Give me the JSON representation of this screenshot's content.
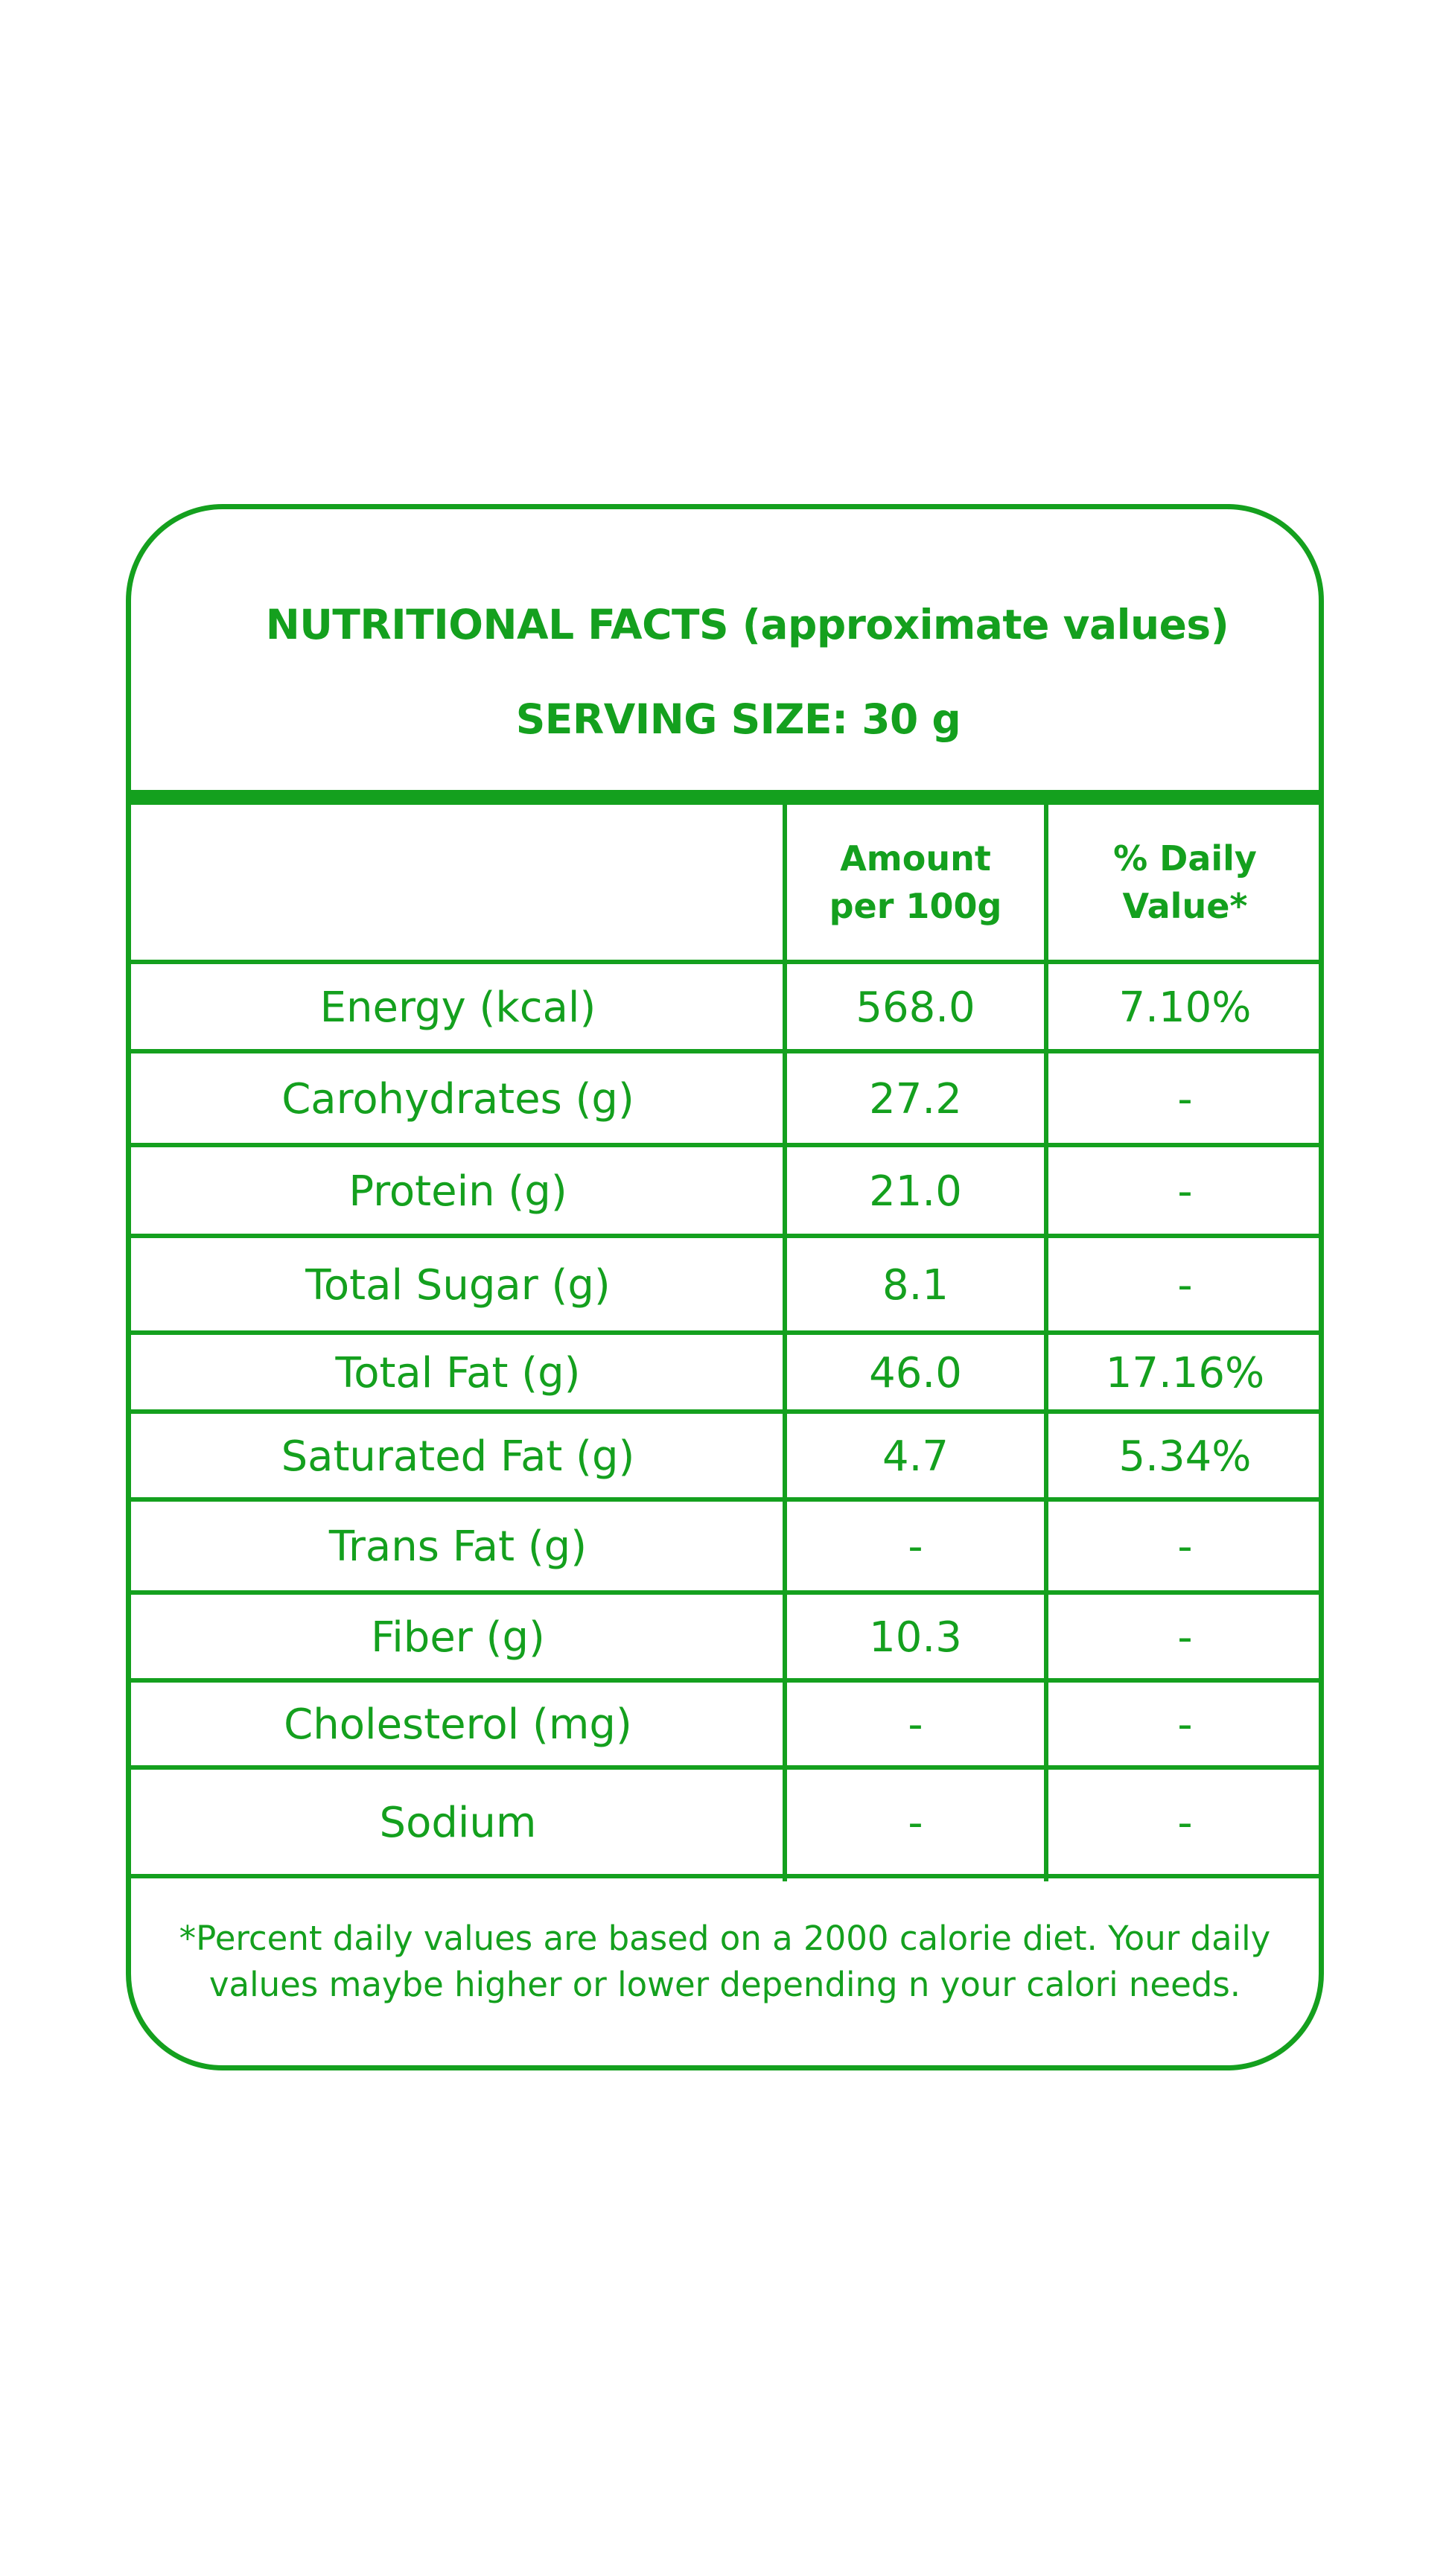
{
  "panel": {
    "title": "NUTRITIONAL FACTS (approximate values)",
    "serving_size": "SERVING SIZE: 30 g"
  },
  "table": {
    "headers": {
      "nutrient": "",
      "amount": "Amount per 100g",
      "daily_value": "% Daily Value*"
    },
    "rows": [
      {
        "nutrient": "Energy (kcal)",
        "amount": "568.0",
        "daily_value": "7.10%"
      },
      {
        "nutrient": "Carohydrates (g)",
        "amount": "27.2",
        "daily_value": "-"
      },
      {
        "nutrient": "Protein (g)",
        "amount": "21.0",
        "daily_value": "-"
      },
      {
        "nutrient": "Total Sugar (g)",
        "amount": "8.1",
        "daily_value": "-"
      },
      {
        "nutrient": "Total Fat (g)",
        "amount": "46.0",
        "daily_value": "17.16%"
      },
      {
        "nutrient": "Saturated Fat (g)",
        "amount": "4.7",
        "daily_value": "5.34%"
      },
      {
        "nutrient": "Trans Fat (g)",
        "amount": "-",
        "daily_value": "-"
      },
      {
        "nutrient": "Fiber (g)",
        "amount": "10.3",
        "daily_value": "-"
      },
      {
        "nutrient": "Cholesterol (mg)",
        "amount": "-",
        "daily_value": "-"
      },
      {
        "nutrient": "Sodium",
        "amount": "-",
        "daily_value": "-"
      }
    ]
  },
  "footnote": "*Percent daily values are based on a 2000 calorie diet. Your daily values maybe higher or lower depending n your calori needs.",
  "colors": {
    "accent": "#14a01e",
    "background": "#ffffff"
  }
}
